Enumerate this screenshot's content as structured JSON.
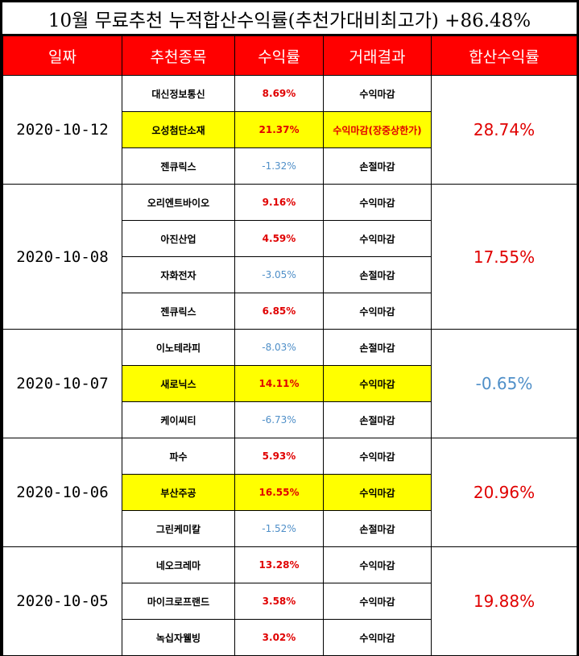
{
  "title": "10월 무료추천 누적합산수익률(추천가대비최고가) +86.48%",
  "headers": [
    "일짜",
    "추천종목",
    "수익률",
    "거래결과",
    "합산수익률"
  ],
  "colors": {
    "header_bg": "#ff0000",
    "highlight": "#ffff00",
    "positive": "#e00000",
    "negative": "#4f8fc8"
  },
  "groups": [
    {
      "date": "2020-10-12",
      "total": "28.74%",
      "total_sign": "pos",
      "rows": [
        {
          "stock": "대신정보통신",
          "return": "8.69%",
          "result": "수익마감",
          "sign": "pos",
          "hl": false
        },
        {
          "stock": "오성첨단소재",
          "return": "21.37%",
          "result": "수익마감(장중상한가)",
          "sign": "pos",
          "hl": true
        },
        {
          "stock": "젠큐릭스",
          "return": "-1.32%",
          "result": "손절마감",
          "sign": "neg",
          "hl": false
        }
      ]
    },
    {
      "date": "2020-10-08",
      "total": "17.55%",
      "total_sign": "pos",
      "rows": [
        {
          "stock": "오리엔트바이오",
          "return": "9.16%",
          "result": "수익마감",
          "sign": "pos",
          "hl": false
        },
        {
          "stock": "아진산업",
          "return": "4.59%",
          "result": "수익마감",
          "sign": "pos",
          "hl": false
        },
        {
          "stock": "자화전자",
          "return": "-3.05%",
          "result": "손절마감",
          "sign": "neg",
          "hl": false
        },
        {
          "stock": "젠큐릭스",
          "return": "6.85%",
          "result": "수익마감",
          "sign": "pos",
          "hl": false
        }
      ]
    },
    {
      "date": "2020-10-07",
      "total": "-0.65%",
      "total_sign": "neg",
      "rows": [
        {
          "stock": "이노테라피",
          "return": "-8.03%",
          "result": "손절마감",
          "sign": "neg",
          "hl": false
        },
        {
          "stock": "새로닉스",
          "return": "14.11%",
          "result": "수익마감",
          "sign": "pos",
          "hl": true
        },
        {
          "stock": "케이씨티",
          "return": "-6.73%",
          "result": "손절마감",
          "sign": "neg",
          "hl": false
        }
      ]
    },
    {
      "date": "2020-10-06",
      "total": "20.96%",
      "total_sign": "pos",
      "rows": [
        {
          "stock": "파수",
          "return": "5.93%",
          "result": "수익마감",
          "sign": "pos",
          "hl": false
        },
        {
          "stock": "부산주공",
          "return": "16.55%",
          "result": "수익마감",
          "sign": "pos",
          "hl": true
        },
        {
          "stock": "그린케미칼",
          "return": "-1.52%",
          "result": "손절마감",
          "sign": "neg",
          "hl": false
        }
      ]
    },
    {
      "date": "2020-10-05",
      "total": "19.88%",
      "total_sign": "pos",
      "rows": [
        {
          "stock": "네오크레마",
          "return": "13.28%",
          "result": "수익마감",
          "sign": "pos",
          "hl": false
        },
        {
          "stock": "마이크로프랜드",
          "return": "3.58%",
          "result": "수익마감",
          "sign": "pos",
          "hl": false
        },
        {
          "stock": "녹십자웰빙",
          "return": "3.02%",
          "result": "수익마감",
          "sign": "pos",
          "hl": false
        }
      ]
    }
  ]
}
